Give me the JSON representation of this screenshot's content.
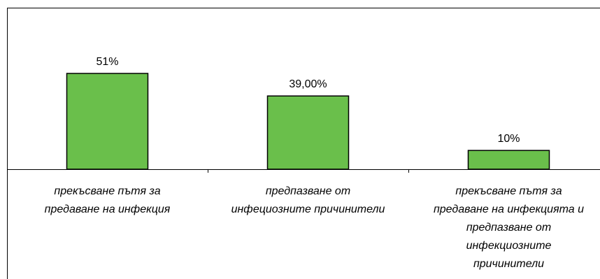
{
  "chart_data": {
    "type": "bar",
    "categories": [
      [
        "прекъсване пътя за",
        "предаване на инфекция"
      ],
      [
        "предпазване от",
        "инфециозните причинители"
      ],
      [
        "прекъсване пътя за",
        "предаване на инфекцията и",
        "предпазване от",
        "инфекциозните",
        "причинители"
      ]
    ],
    "values": [
      51,
      39,
      10
    ],
    "data_labels": [
      "51%",
      "39,00%",
      "10%"
    ],
    "bar_color": "#6abf4b",
    "bar_edge_color": "#000000",
    "grid": false,
    "legend": "none"
  }
}
